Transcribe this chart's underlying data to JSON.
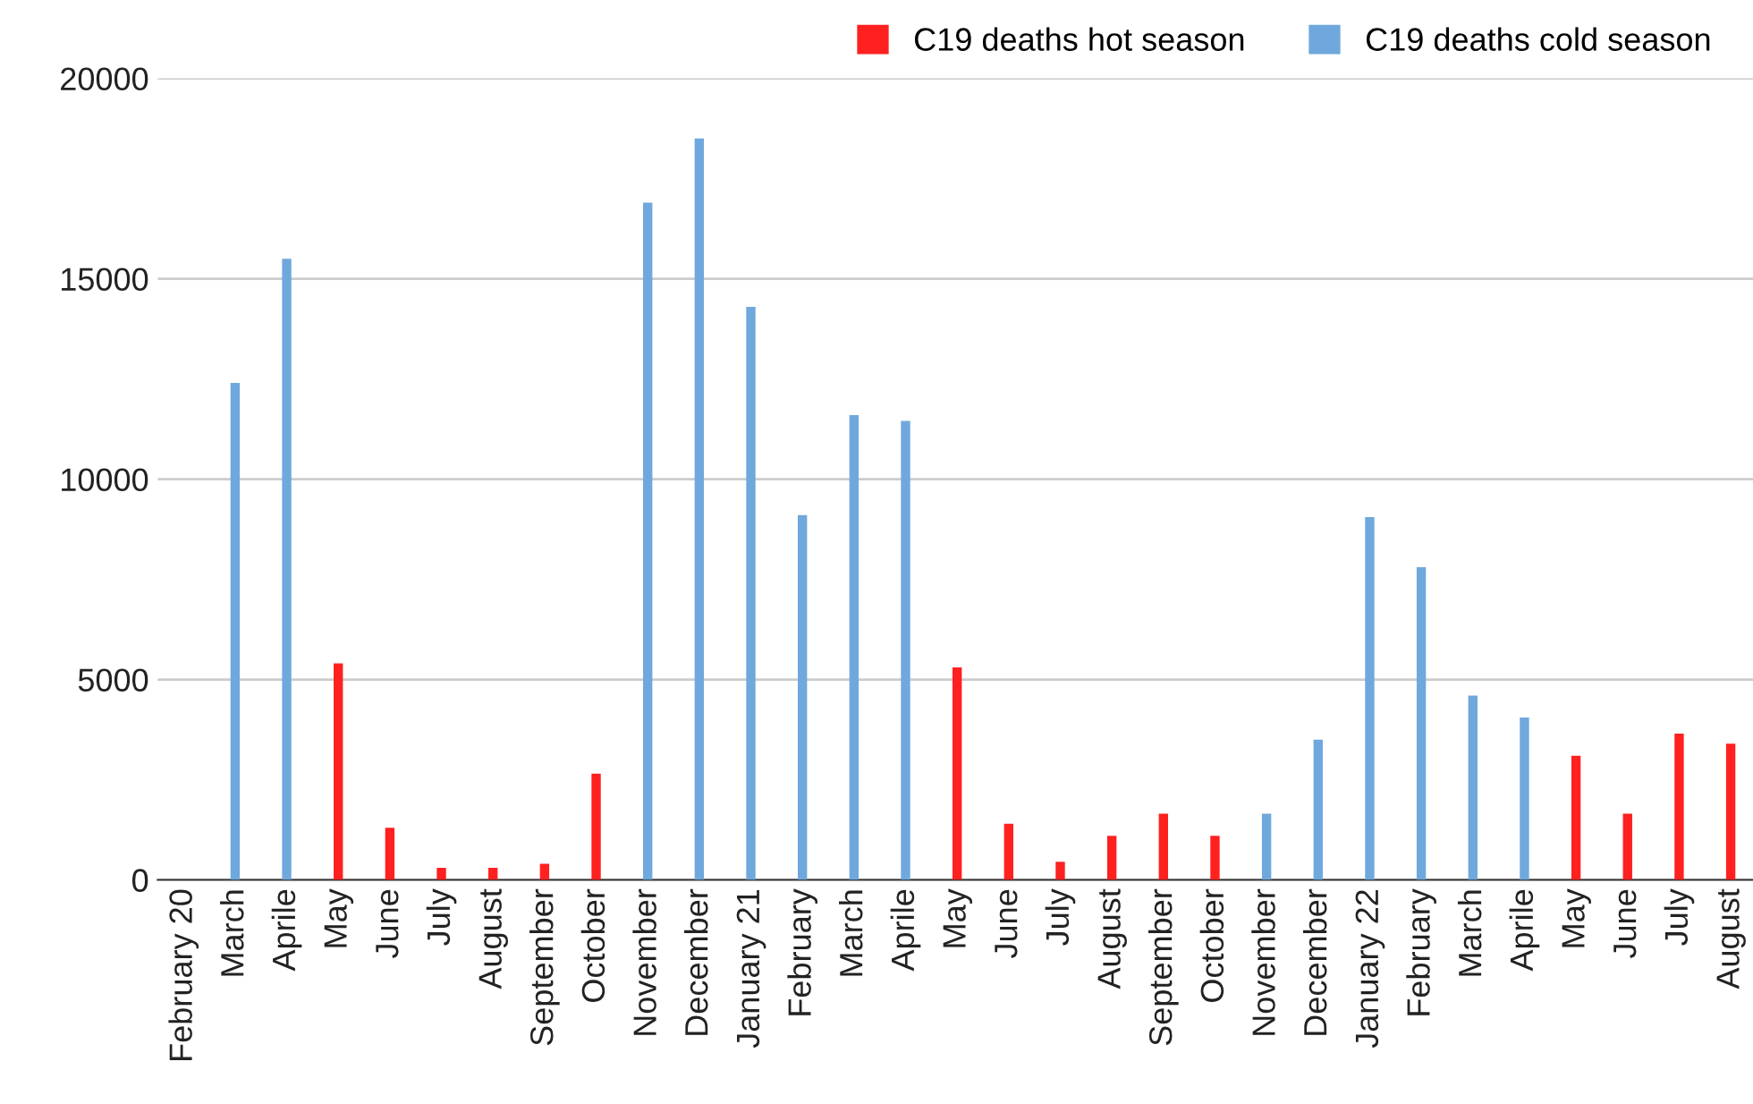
{
  "chart_data": {
    "type": "bar",
    "stacked": true,
    "categories": [
      "February 20",
      "March",
      "Aprile",
      "May",
      "June",
      "July",
      "August",
      "September",
      "October",
      "November",
      "December",
      "January 21",
      "February",
      "March",
      "Aprile",
      "May",
      "June",
      "July",
      "August",
      "September",
      "October",
      "November",
      "December",
      "January 22",
      "February",
      "March",
      "Aprile",
      "May",
      "June",
      "July",
      "August"
    ],
    "series": [
      {
        "name": "C19 deaths hot season",
        "color": "#ff2020",
        "values": [
          null,
          null,
          null,
          5400,
          1300,
          300,
          300,
          400,
          2650,
          null,
          null,
          null,
          null,
          null,
          null,
          5300,
          1400,
          450,
          1100,
          1650,
          1100,
          null,
          null,
          null,
          null,
          null,
          null,
          3100,
          1650,
          3650,
          3400
        ]
      },
      {
        "name": "C19 deaths cold season",
        "color": "#6fa8dc",
        "values": [
          null,
          12400,
          15500,
          null,
          null,
          null,
          null,
          null,
          null,
          16900,
          18500,
          14300,
          9100,
          11600,
          11450,
          null,
          null,
          null,
          null,
          null,
          null,
          1650,
          3500,
          9050,
          7800,
          4600,
          4050,
          null,
          null,
          null,
          null
        ]
      }
    ],
    "ylim": [
      0,
      20000
    ],
    "yticks": [
      0,
      5000,
      10000,
      15000,
      20000
    ],
    "grid": "y",
    "legend": "top right"
  }
}
